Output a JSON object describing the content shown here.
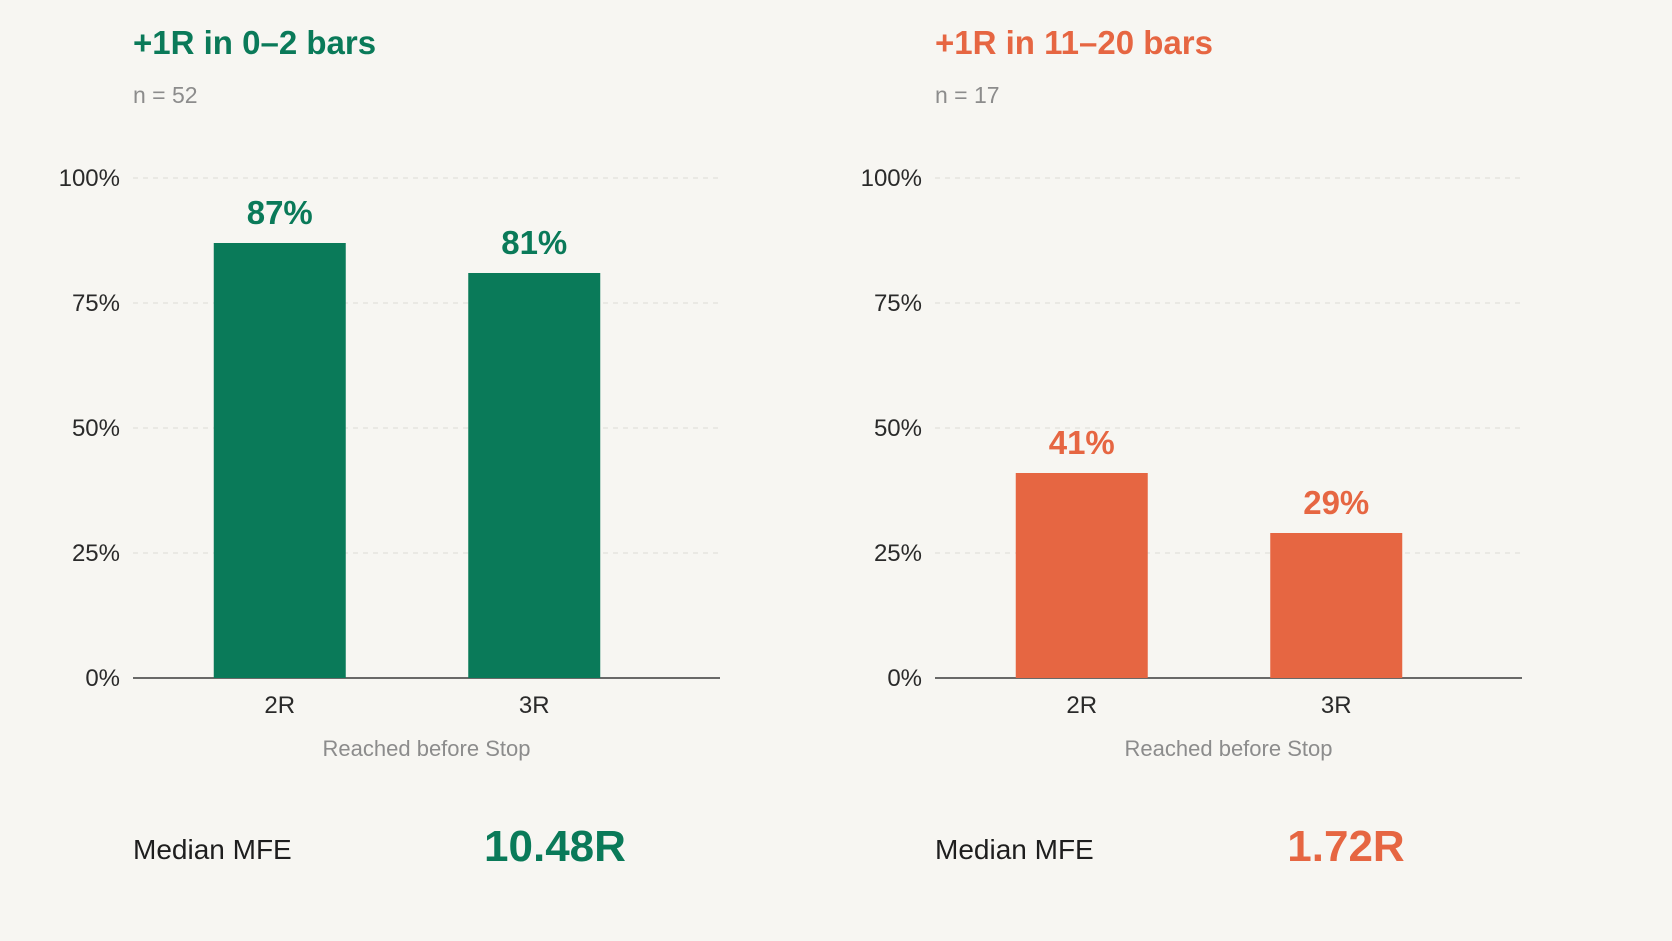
{
  "chart_data": [
    {
      "type": "bar",
      "title": "+1R in 0–2 bars",
      "subtitle": "n = 52",
      "categories": [
        "2R",
        "3R"
      ],
      "values": [
        87,
        81
      ],
      "value_labels": [
        "87%",
        "81%"
      ],
      "xlabel": "Reached before Stop",
      "ylabel": "",
      "ylim": [
        0,
        100
      ],
      "yticks": [
        0,
        25,
        50,
        75,
        100
      ],
      "ytick_labels": [
        "0%",
        "25%",
        "50%",
        "75%",
        "100%"
      ],
      "grid": true,
      "color": "#0a7a59",
      "metric": {
        "label": "Median MFE",
        "value": "10.48R"
      }
    },
    {
      "type": "bar",
      "title": "+1R in 11–20 bars",
      "subtitle": "n = 17",
      "categories": [
        "2R",
        "3R"
      ],
      "values": [
        41,
        29
      ],
      "value_labels": [
        "41%",
        "29%"
      ],
      "xlabel": "Reached before Stop",
      "ylabel": "",
      "ylim": [
        0,
        100
      ],
      "yticks": [
        0,
        25,
        50,
        75,
        100
      ],
      "ytick_labels": [
        "0%",
        "25%",
        "50%",
        "75%",
        "100%"
      ],
      "grid": true,
      "color": "#e66642",
      "metric": {
        "label": "Median MFE",
        "value": "1.72R"
      }
    }
  ]
}
